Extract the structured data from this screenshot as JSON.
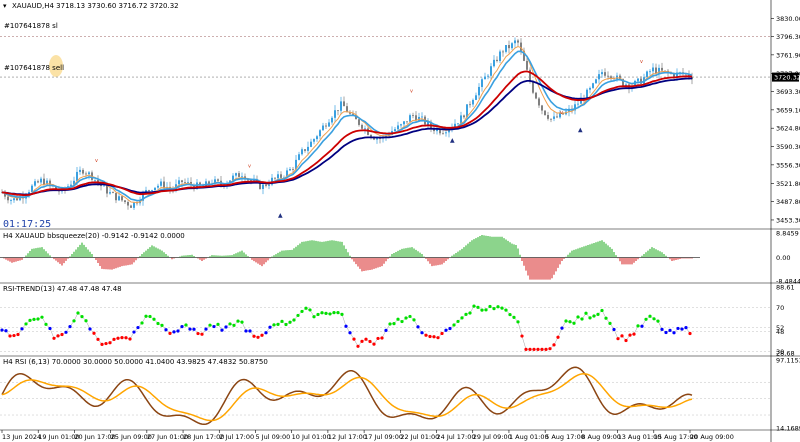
{
  "chart_data": [
    {
      "type": "candlestick",
      "panel": "price",
      "title": "XAUAUD,H4  3718.13 3730.60 3716.72 3720.32",
      "symbol": "XAUAUD",
      "timeframe": "H4",
      "ohlc": {
        "open": 3718.13,
        "high": 3730.6,
        "low": 3716.72,
        "close": 3720.32
      },
      "order_labels": [
        "#107641878 sl",
        "#107641878 sell"
      ],
      "order_levels": [
        3796.3,
        3720.32
      ],
      "countdown": "01:17:25",
      "current_price_tag": "3720.32",
      "ylim": [
        3442,
        3842
      ],
      "y_ticks": [
        3830.0,
        3796.3,
        3761.9,
        3727.0,
        3693.3,
        3659.1,
        3624.8,
        3590.3,
        3556.3,
        3521.8,
        3487.8,
        3453.3
      ],
      "x_tick_labels": [
        "13 Jun 2024",
        "19 Jun 01:00",
        "20 Jun 17:00",
        "25 Jun 09:00",
        "27 Jun 01:00",
        "28 Jun 17:00",
        "2 Jul 17:00",
        "5 Jul 09:00",
        "10 Jul 01:00",
        "12 Jul 17:00",
        "17 Jul 09:00",
        "22 Jul 01:00",
        "24 Jul 17:00",
        "29 Jul 09:00",
        "1 Aug 01:00",
        "5 Aug 17:00",
        "8 Aug 09:00",
        "13 Aug 01:00",
        "15 Aug 17:00",
        "20 Aug 09:00"
      ],
      "series_points": [
        [
          0,
          3505
        ],
        [
          10,
          3490
        ],
        [
          20,
          3498
        ],
        [
          30,
          3515
        ],
        [
          40,
          3528
        ],
        [
          50,
          3515
        ],
        [
          60,
          3505
        ],
        [
          70,
          3525
        ],
        [
          80,
          3548
        ],
        [
          90,
          3535
        ],
        [
          100,
          3515
        ],
        [
          110,
          3500
        ],
        [
          120,
          3490
        ],
        [
          130,
          3480
        ],
        [
          140,
          3500
        ],
        [
          150,
          3515
        ],
        [
          160,
          3520
        ],
        [
          170,
          3510
        ],
        [
          180,
          3525
        ],
        [
          190,
          3518
        ],
        [
          200,
          3515
        ],
        [
          210,
          3525
        ],
        [
          220,
          3520
        ],
        [
          230,
          3532
        ],
        [
          240,
          3540
        ],
        [
          250,
          3525
        ],
        [
          260,
          3515
        ],
        [
          270,
          3528
        ],
        [
          280,
          3535
        ],
        [
          290,
          3550
        ],
        [
          300,
          3580
        ],
        [
          310,
          3600
        ],
        [
          320,
          3625
        ],
        [
          330,
          3650
        ],
        [
          340,
          3670
        ],
        [
          350,
          3645
        ],
        [
          360,
          3630
        ],
        [
          370,
          3610
        ],
        [
          380,
          3605
        ],
        [
          390,
          3620
        ],
        [
          400,
          3630
        ],
        [
          410,
          3650
        ],
        [
          420,
          3640
        ],
        [
          430,
          3625
        ],
        [
          440,
          3620
        ],
        [
          450,
          3630
        ],
        [
          460,
          3645
        ],
        [
          470,
          3680
        ],
        [
          480,
          3710
        ],
        [
          490,
          3740
        ],
        [
          500,
          3770
        ],
        [
          510,
          3780
        ],
        [
          515,
          3790
        ],
        [
          520,
          3760
        ],
        [
          530,
          3700
        ],
        [
          540,
          3660
        ],
        [
          550,
          3640
        ],
        [
          560,
          3650
        ],
        [
          570,
          3660
        ],
        [
          580,
          3680
        ],
        [
          590,
          3700
        ],
        [
          600,
          3730
        ],
        [
          610,
          3725
        ],
        [
          620,
          3710
        ],
        [
          630,
          3705
        ],
        [
          640,
          3715
        ],
        [
          650,
          3735
        ],
        [
          660,
          3730
        ],
        [
          670,
          3725
        ],
        [
          680,
          3727
        ],
        [
          690,
          3722
        ]
      ]
    },
    {
      "type": "histogram",
      "panel": "bbsqueeze",
      "title": "H4 XAUAUD bbsqueeze(20) -0.9142 -0.9142 0.0000",
      "ylim": [
        -8.4844,
        8.8459
      ],
      "y_ticks": [
        8.8459,
        0.0,
        -8.4844
      ],
      "colors": {
        "positive": "#00a000",
        "negative": "#d00000"
      }
    },
    {
      "type": "scatter",
      "panel": "rsi_trend",
      "title": "RSI-TREND(13) 47.48 47.48 47.48",
      "ylim": [
        28.68,
        88.61
      ],
      "y_ticks": [
        88.61,
        70,
        52,
        48,
        30,
        28.68
      ],
      "colors": {
        "up": "#00e000",
        "neutral": "#0000ff",
        "down": "#ff0000"
      }
    },
    {
      "type": "line",
      "panel": "rsi",
      "title": "H4 RSI (6,13) 70.0000 30.0000 50.0000 41.0400 43.9825 47.4832 50.8750",
      "ylim": [
        14.1689,
        97.1153
      ],
      "y_ticks": [
        97.1153,
        14.1689
      ],
      "colors": {
        "rsi": "#8b4513",
        "signal": "#ffa500"
      }
    }
  ],
  "colors": {
    "ema_fast": "#cc0000",
    "ema_slow": "#000080",
    "ma_light": "#3aa0e0",
    "ma_orange": "#f0a050",
    "bull": "#3aa0e0",
    "bear": "#808080",
    "bg": "#ffffff",
    "text": "#000000"
  }
}
